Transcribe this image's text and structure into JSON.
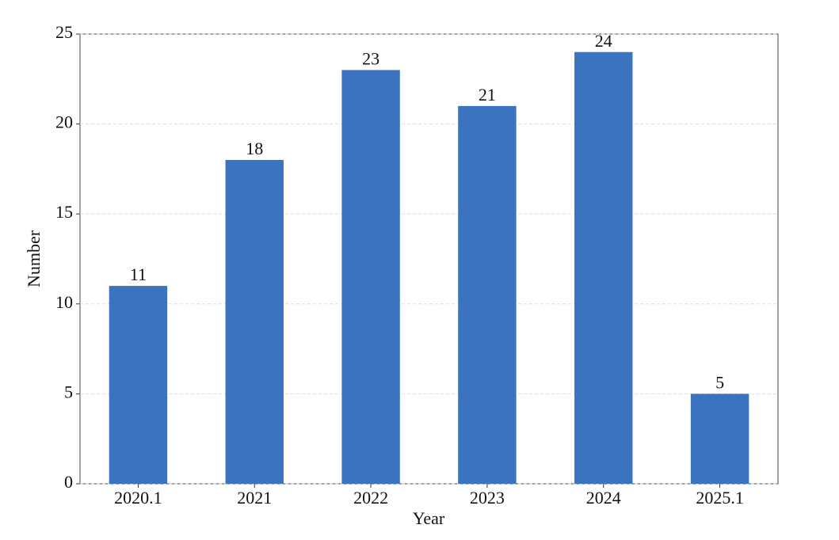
{
  "chart_data": {
    "type": "bar",
    "categories": [
      "2020.1",
      "2021",
      "2022",
      "2023",
      "2024",
      "2025.1"
    ],
    "values": [
      11,
      18,
      23,
      21,
      24,
      5
    ],
    "color": "#3c73bf",
    "ylim": [
      0,
      25
    ],
    "yticks": [
      0,
      5,
      10,
      15,
      20,
      25
    ],
    "grid": true,
    "x_label": "Year",
    "y_label": "Number"
  }
}
